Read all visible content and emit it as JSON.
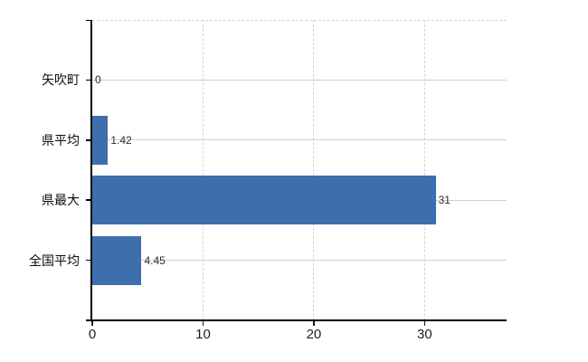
{
  "chart_data": {
    "type": "bar",
    "orientation": "horizontal",
    "title": "",
    "xlabel": "",
    "ylabel": "",
    "categories": [
      "矢吹町",
      "県平均",
      "県最大",
      "全国平均"
    ],
    "values": [
      0,
      1.42,
      31,
      4.45
    ],
    "value_labels": [
      "0",
      "1.42",
      "31",
      "4.45"
    ],
    "x_ticks": [
      0,
      10,
      20,
      30
    ],
    "x_tick_labels": [
      "0",
      "10",
      "20",
      "30"
    ],
    "xlim": [
      0,
      37.4
    ],
    "grid": true,
    "legend": false,
    "gridline_style": {
      "horizontal": "solid",
      "vertical": "dashed",
      "plot_top_border": "dashed"
    },
    "colors": {
      "bar": "#3d6ead",
      "background": "#ffffff",
      "axis": "#000000",
      "horizontal_gridline": "#c9d4c9",
      "vertical_gridline": "#d4d4d4",
      "text": "#1f1f1f"
    }
  }
}
